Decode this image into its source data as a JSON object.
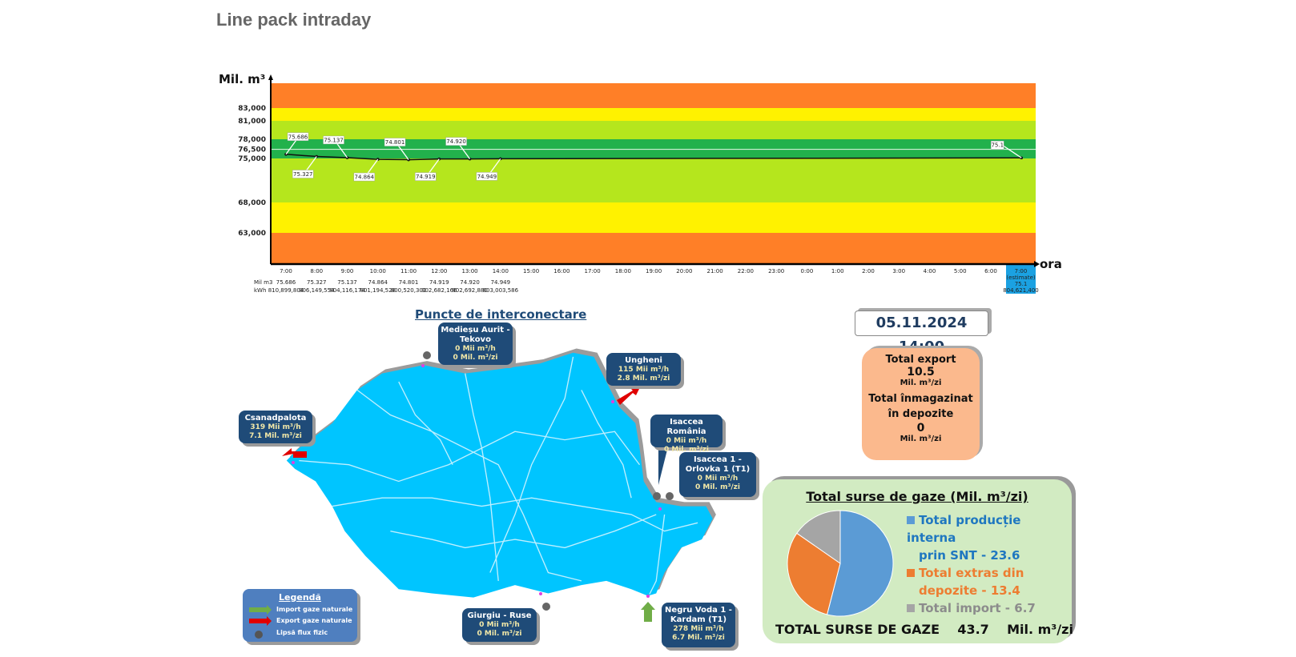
{
  "title": "Line pack intraday",
  "chart_data": {
    "type": "line",
    "title": "Line pack intraday",
    "ylabel": "Mil. m³",
    "xlabel": "ora",
    "y_ticks": [
      "83,000",
      "81,000",
      "78,000",
      "76,500",
      "75,000",
      "68,000",
      "63,000"
    ],
    "y_tick_values": [
      83000,
      81000,
      78000,
      76500,
      75000,
      68000,
      63000
    ],
    "bands": [
      {
        "from": 83000,
        "to": null,
        "color": "#ff7f27"
      },
      {
        "from": 81000,
        "to": 83000,
        "color": "#fff200"
      },
      {
        "from": 78000,
        "to": 81000,
        "color": "#b5e61d"
      },
      {
        "from": 75000,
        "to": 78000,
        "color": "#22b14c"
      },
      {
        "from": 68000,
        "to": 75000,
        "color": "#b5e61d"
      },
      {
        "from": 63000,
        "to": 68000,
        "color": "#fff200"
      },
      {
        "from": null,
        "to": 63000,
        "color": "#ff7f27"
      }
    ],
    "x_labels": [
      "7:00",
      "8:00",
      "9:00",
      "10:00",
      "11:00",
      "12:00",
      "13:00",
      "14:00",
      "15:00",
      "16:00",
      "17:00",
      "18:00",
      "19:00",
      "20:00",
      "21:00",
      "22:00",
      "23:00",
      "0:00",
      "1:00",
      "2:00",
      "3:00",
      "4:00",
      "5:00",
      "6:00"
    ],
    "series": [
      {
        "name": "Mil m3",
        "values": [
          75.686,
          75.327,
          75.137,
          74.864,
          74.801,
          74.919,
          74.92,
          74.949
        ]
      }
    ],
    "data_labels": [
      "75.686",
      "75.327",
      "75.137",
      "74.864",
      "74.801",
      "74.919",
      "74.920",
      "74.949"
    ],
    "table": {
      "row_labels": [
        "Mil m3",
        "kWh"
      ],
      "mil_m3": [
        "75.686",
        "75.327",
        "75.137",
        "74.864",
        "74.801",
        "74.919",
        "74.920",
        "74.949"
      ],
      "kwh": [
        "810,899,804",
        "806,149,554",
        "804,116,174",
        "801,194,528",
        "800,520,302",
        "802,682,166",
        "802,692,880",
        "803,003,586"
      ]
    },
    "estimate": {
      "label": "7:00",
      "sublabel": "(estimate)",
      "value": 75.1,
      "value_text": "75.1",
      "kwh": "804,621,400",
      "color": "#1ba1e2"
    }
  },
  "map": {
    "title": "Puncte de interconectare",
    "points": [
      {
        "name": "Medieșu Aurit - Tekovo",
        "hourly": "0",
        "daily": "0"
      },
      {
        "name": "Ungheni",
        "hourly": "115",
        "daily": "2.8"
      },
      {
        "name": "Csanadpalota",
        "hourly": "319",
        "daily": "7.1"
      },
      {
        "name": "Isaccea România",
        "hourly": "0",
        "daily": "0"
      },
      {
        "name": "Isaccea 1 - Orlovka 1 (T1)",
        "hourly": "0",
        "daily": "0"
      },
      {
        "name": "Giurgiu - Ruse",
        "hourly": "0",
        "daily": "0"
      },
      {
        "name": "Negru Voda 1 - Kardam (T1)",
        "hourly": "278",
        "daily": "6.7"
      }
    ],
    "unit_hourly": "Mii  m³/h",
    "unit_daily": "Mil. m³/zi",
    "legend": {
      "title": "Legendă",
      "items": [
        "Import gaze naturale",
        "Export gaze naturale",
        "Lipsă flux fizic"
      ]
    },
    "colors": {
      "land": "#00c5ff",
      "callout": "#1f4b78",
      "import": "#70ad47",
      "export": "#ff0000"
    }
  },
  "timestamp": "05.11.2024 14:00",
  "export_box": {
    "export_label": "Total export",
    "export_value": "10.5",
    "unit": "Mil. m³/zi",
    "storage_label_1": "Total înmagazinat",
    "storage_label_2": "în depozite",
    "storage_value": "0"
  },
  "sources": {
    "title": "Total surse de gaze  (Mil. m³/zi)",
    "chart_data": {
      "type": "pie",
      "labels": [
        "Total producție interna prin SNT",
        "Total extras din depozite",
        "Total import"
      ],
      "values": [
        23.6,
        13.4,
        6.7
      ],
      "colors": [
        "#5b9bd5",
        "#ed7d31",
        "#a5a5a5"
      ]
    },
    "legend": [
      {
        "line1": "Total producție interna",
        "line2": "prin SNT - 23.6",
        "color": "#1f77c0"
      },
      {
        "line1": "Total extras din",
        "line2": "depozite - 13.4",
        "color": "#ed7d31"
      },
      {
        "line1": "Total import - 6.7",
        "color": "#8c8c8c"
      }
    ],
    "total_label": "TOTAL SURSE DE GAZE",
    "total_value": "43.7",
    "total_unit": "Mil. m³/zi"
  }
}
